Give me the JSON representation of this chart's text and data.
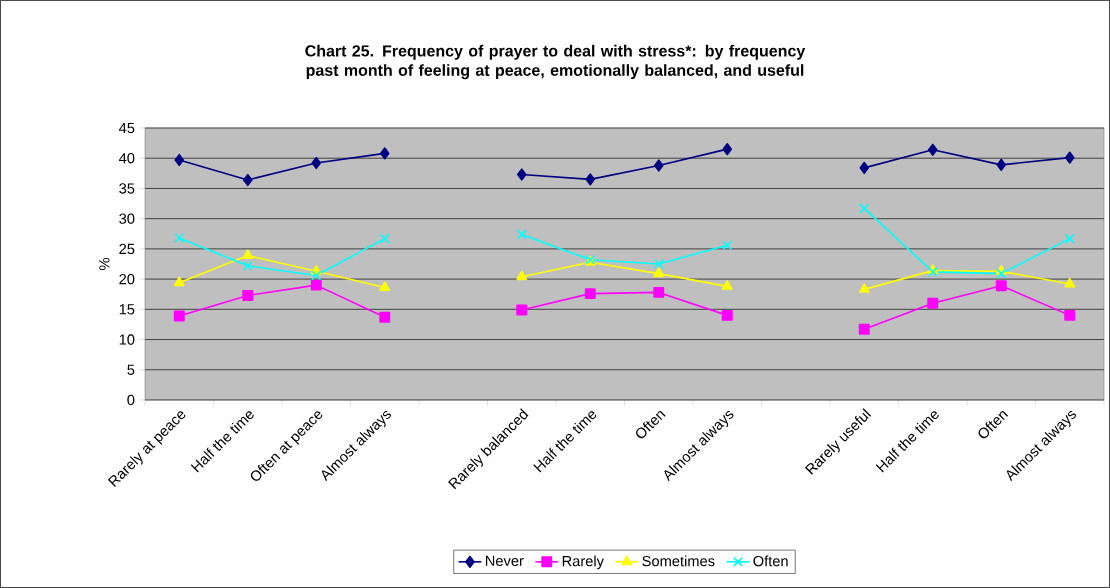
{
  "chart_data": {
    "type": "line",
    "title": "Chart 25. Frequency of prayer to deal with stress*: by frequency past month of feeling at peace, emotionally balanced, and useful",
    "ylabel": "%",
    "categories": [
      "Rarely at peace",
      "Half the time",
      "Often at peace",
      "Almost always",
      null,
      "Rarely balanced",
      "Half the time",
      "Often",
      "Almost always",
      null,
      "Rarely useful",
      "Half the time",
      "Often",
      "Almost always"
    ],
    "series": [
      {
        "name": "Never",
        "color": "#000080",
        "marker": "diamond",
        "values": [
          39.7,
          36.4,
          39.2,
          40.8,
          null,
          37.3,
          36.5,
          38.8,
          41.5,
          null,
          38.4,
          41.4,
          38.9,
          40.1
        ]
      },
      {
        "name": "Rarely",
        "color": "#ff00ff",
        "marker": "square",
        "values": [
          13.9,
          17.3,
          19.0,
          13.7,
          null,
          14.9,
          17.6,
          17.8,
          14.0,
          null,
          11.7,
          16.0,
          18.9,
          14.0
        ]
      },
      {
        "name": "Sometimes",
        "color": "#ffff00",
        "marker": "triangle",
        "values": [
          19.4,
          23.9,
          21.3,
          18.6,
          null,
          20.4,
          22.8,
          20.9,
          18.8,
          null,
          18.3,
          21.4,
          21.3,
          19.2
        ]
      },
      {
        "name": "Often",
        "color": "#00ffff",
        "marker": "cross",
        "values": [
          26.8,
          22.2,
          20.6,
          26.7,
          null,
          27.4,
          23.2,
          22.5,
          25.6,
          null,
          31.7,
          21.2,
          20.9,
          26.7
        ]
      }
    ],
    "ylim": [
      0,
      45
    ],
    "yticks": [
      0,
      5,
      10,
      15,
      20,
      25,
      30,
      35,
      40,
      45
    ],
    "grid": "y",
    "legend": "bottom"
  }
}
